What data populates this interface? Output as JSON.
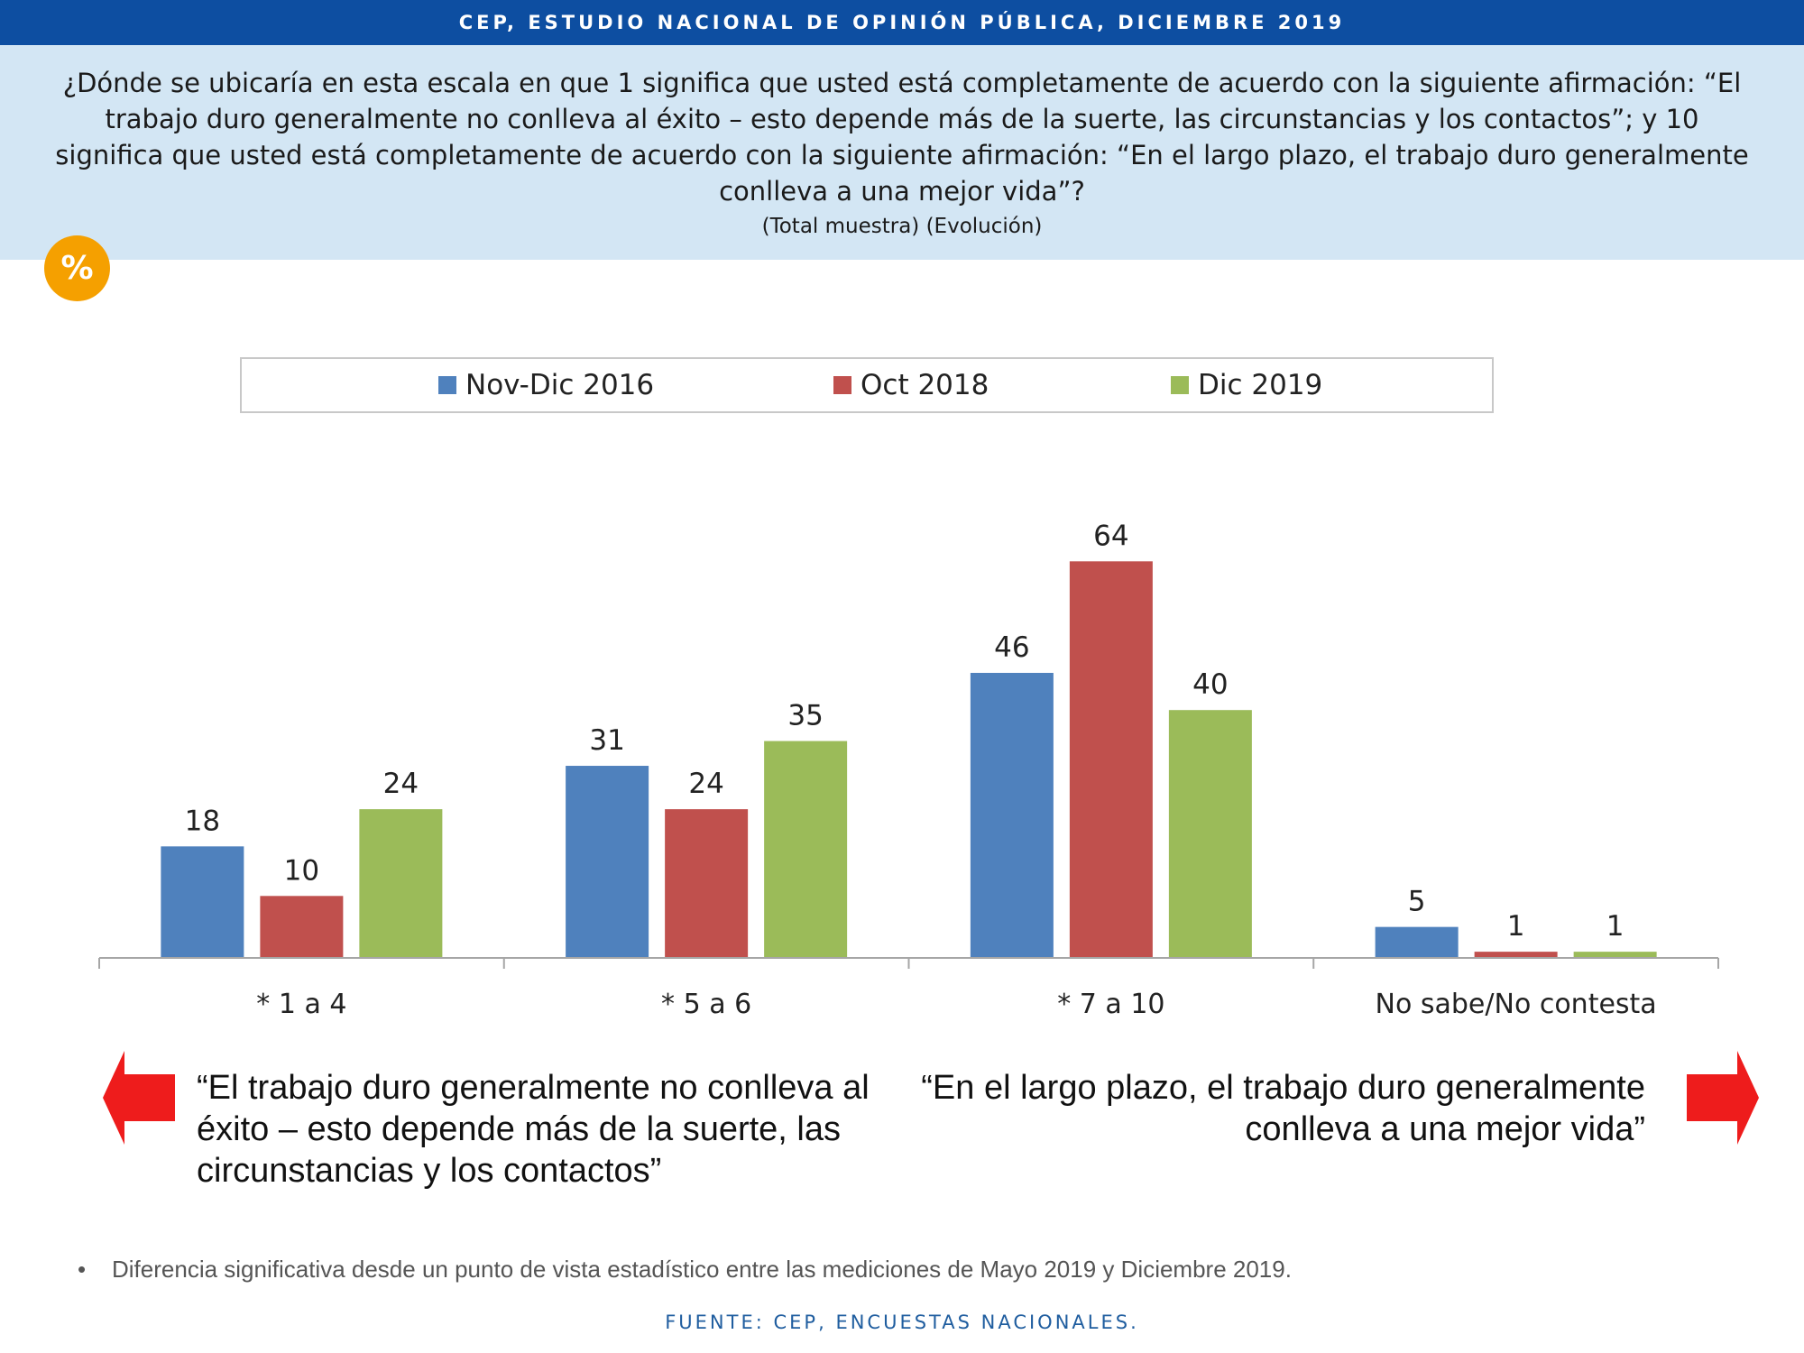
{
  "header": {
    "banner": "CEP, ESTUDIO NACIONAL DE OPINIÓN PÚBLICA, DICIEMBRE 2019",
    "question": "¿Dónde se ubicaría en esta escala en que 1 significa que usted está completamente de acuerdo con la siguiente afirmación: “El trabajo duro generalmente no conlleva al éxito – esto depende más de la suerte, las circunstancias y los contactos”; y 10 significa que usted está completamente de acuerdo con la siguiente afirmación: “En el largo plazo, el trabajo duro generalmente conlleva a una mejor vida”?",
    "subtitle": "(Total muestra) (Evolución)",
    "badge": "%"
  },
  "colors": {
    "banner": "#0d4ea1",
    "panel": "#d3e6f4",
    "badge": "#f5a000",
    "arrow": "#ee1c1c"
  },
  "chart_data": {
    "type": "bar",
    "categories": [
      "* 1 a 4",
      "* 5 a 6",
      "* 7 a 10",
      "No sabe/No contesta"
    ],
    "series": [
      {
        "name": "Nov-Dic 2016",
        "color": "#4f81bd",
        "values": [
          18,
          31,
          46,
          5
        ]
      },
      {
        "name": "Oct 2018",
        "color": "#c0504d",
        "values": [
          10,
          24,
          64,
          1
        ]
      },
      {
        "name": "Dic 2019",
        "color": "#9bbb59",
        "values": [
          24,
          35,
          40,
          1
        ]
      }
    ],
    "ylim": [
      0,
      64
    ],
    "grid": false,
    "legend_position": "top"
  },
  "annotations": {
    "left_quote": "“El trabajo duro generalmente no conlleva al éxito – esto depende más de la suerte, las circunstancias y los contactos”",
    "right_quote": "“En el largo plazo, el trabajo duro generalmente conlleva a una mejor vida”"
  },
  "footer": {
    "bullet": "•",
    "footnote": "Diferencia significativa desde un punto de vista estadístico entre las mediciones de Mayo 2019 y Diciembre 2019.",
    "source": "FUENTE: CEP, ENCUESTAS NACIONALES."
  }
}
